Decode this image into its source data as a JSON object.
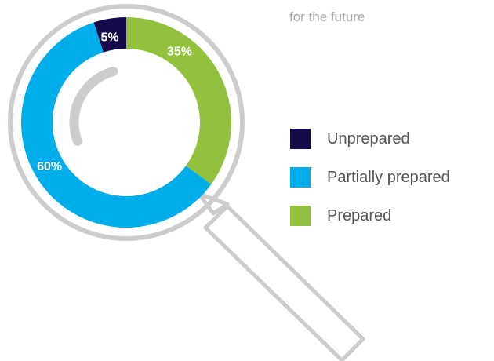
{
  "header": {
    "subtitle": "for the future"
  },
  "colors": {
    "magnifier_stroke": "#cccccc",
    "background": "#ffffff"
  },
  "chart_data": {
    "type": "pie",
    "variant": "donut",
    "title": "",
    "categories": [
      "Unprepared",
      "Partially prepared",
      "Prepared"
    ],
    "values": [
      5,
      60,
      35
    ],
    "labels": [
      "5%",
      "60%",
      "35%"
    ],
    "colors": [
      "#150b4b",
      "#00adeb",
      "#94c13d"
    ],
    "label_colors": [
      "#ffffff",
      "#ffffff",
      "#ffffff"
    ],
    "legend_placement": "right"
  }
}
